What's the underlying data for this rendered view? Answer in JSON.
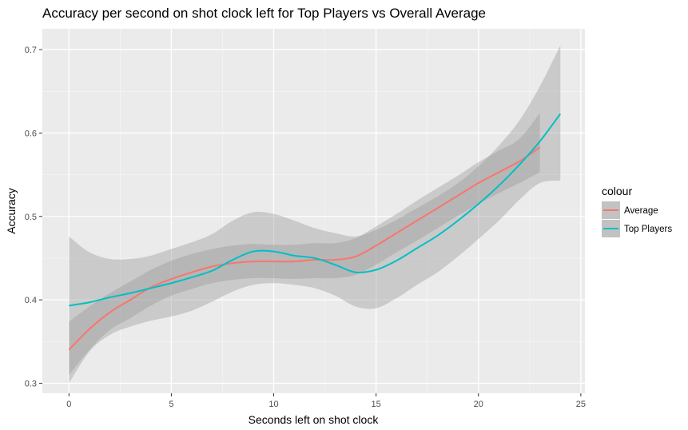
{
  "chart_data": {
    "type": "line",
    "title": "Accuracy per second on shot clock left for Top Players vs Overall Average",
    "xlabel": "Seconds left on shot clock",
    "ylabel": "Accuracy",
    "xlim": [
      -1.3,
      25.2
    ],
    "ylim": [
      0.288,
      0.725
    ],
    "x_ticks": [
      0,
      5,
      10,
      15,
      20,
      25
    ],
    "x_tick_labels": [
      "0",
      "5",
      "10",
      "15",
      "20",
      "25"
    ],
    "y_ticks": [
      0.3,
      0.4,
      0.5,
      0.6,
      0.7
    ],
    "y_tick_labels": [
      "0.3",
      "0.4",
      "0.5",
      "0.6",
      "0.7"
    ],
    "grid": true,
    "legend": {
      "title": "colour",
      "position": "right",
      "entries": [
        "Average",
        "Top Players"
      ]
    },
    "series": [
      {
        "name": "Average",
        "color": "#F8766D",
        "x": [
          0,
          1,
          2,
          3,
          4,
          5,
          6,
          7,
          8,
          9,
          10,
          11,
          12,
          13,
          14,
          15,
          16,
          17,
          18,
          19,
          20,
          21,
          22,
          23
        ],
        "y": [
          0.34,
          0.365,
          0.385,
          0.4,
          0.415,
          0.425,
          0.433,
          0.44,
          0.444,
          0.446,
          0.446,
          0.446,
          0.448,
          0.448,
          0.452,
          0.465,
          0.48,
          0.495,
          0.51,
          0.525,
          0.54,
          0.553,
          0.566,
          0.583
        ],
        "ci_lower": [
          0.31,
          0.34,
          0.364,
          0.378,
          0.393,
          0.405,
          0.413,
          0.42,
          0.424,
          0.426,
          0.426,
          0.425,
          0.426,
          0.426,
          0.43,
          0.442,
          0.457,
          0.471,
          0.486,
          0.501,
          0.515,
          0.528,
          0.54,
          0.553
        ],
        "ci_upper": [
          0.374,
          0.392,
          0.408,
          0.422,
          0.436,
          0.447,
          0.455,
          0.461,
          0.465,
          0.467,
          0.466,
          0.466,
          0.468,
          0.468,
          0.474,
          0.488,
          0.503,
          0.519,
          0.534,
          0.549,
          0.565,
          0.579,
          0.593,
          0.624
        ]
      },
      {
        "name": "Top Players",
        "color": "#00BFC4",
        "x": [
          0,
          1,
          2,
          3,
          4,
          5,
          6,
          7,
          8,
          9,
          10,
          11,
          12,
          13,
          14,
          15,
          16,
          17,
          18,
          19,
          20,
          21,
          22,
          23,
          24
        ],
        "y": [
          0.393,
          0.397,
          0.403,
          0.408,
          0.414,
          0.42,
          0.427,
          0.435,
          0.448,
          0.458,
          0.458,
          0.453,
          0.45,
          0.442,
          0.433,
          0.436,
          0.447,
          0.462,
          0.477,
          0.495,
          0.515,
          0.537,
          0.562,
          0.59,
          0.623
        ],
        "ci_lower": [
          0.3,
          0.338,
          0.358,
          0.368,
          0.375,
          0.38,
          0.387,
          0.398,
          0.41,
          0.418,
          0.42,
          0.418,
          0.414,
          0.405,
          0.392,
          0.39,
          0.402,
          0.418,
          0.433,
          0.452,
          0.473,
          0.495,
          0.52,
          0.54,
          0.543
        ],
        "ci_upper": [
          0.476,
          0.457,
          0.449,
          0.449,
          0.453,
          0.461,
          0.469,
          0.479,
          0.495,
          0.505,
          0.503,
          0.495,
          0.486,
          0.48,
          0.476,
          0.484,
          0.496,
          0.51,
          0.524,
          0.54,
          0.56,
          0.585,
          0.615,
          0.656,
          0.705
        ]
      }
    ]
  }
}
